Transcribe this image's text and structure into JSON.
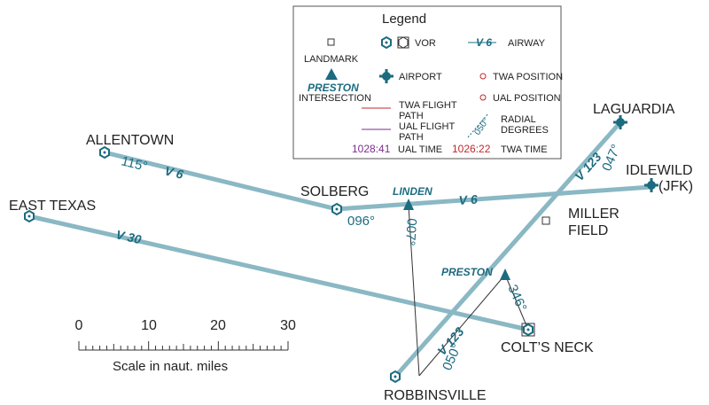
{
  "colors": {
    "airway": "#8ab8c4",
    "teal": "#1c6b80",
    "twa_red": "#c0282c",
    "ual_purple": "#7a2e8c",
    "flight_path_black": "#333333",
    "text": "#222222"
  },
  "places": {
    "allentown": "ALLENTOWN",
    "east_texas": "EAST TEXAS",
    "solberg": "SOLBERG",
    "miller_field_line1": "MILLER",
    "miller_field_line2": "FIELD",
    "laguardia": "LAGUARDIA",
    "idlewild_line1": "IDLEWILD",
    "idlewild_line2": "(JFK)",
    "colts_neck": "COLT’S NECK",
    "robbinsville": "ROBBINSVILLE"
  },
  "intersections": {
    "linden": "LINDEN",
    "preston": "PRESTON"
  },
  "airways": {
    "v6_west": "V 6",
    "v6_east": "V 6",
    "v30": "V 30",
    "v123_north": "V 123",
    "v123_south": "V 123"
  },
  "radials": {
    "allentown": "115°",
    "solberg": "096°",
    "linden": "007°",
    "laguardia": "047°",
    "preston": "346°",
    "robbinsville": "050°"
  },
  "scale": {
    "ticks": [
      "0",
      "10",
      "20",
      "30"
    ],
    "caption": "Scale in naut. miles"
  },
  "legend": {
    "title": "Legend",
    "landmark": "LANDMARK",
    "vor": "VOR",
    "airway_sample": "V 6",
    "airway": "AIRWAY",
    "intersection_sample": "PRESTON",
    "intersection": "INTERSECTION",
    "airport": "AIRPORT",
    "twa_position": "TWA POSITION",
    "ual_position": "UAL POSITION",
    "twa_flight_path_line1": "TWA FLIGHT",
    "twa_flight_path_line2": "PATH",
    "ual_flight_path_line1": "UAL FLIGHT",
    "ual_flight_path_line2": "PATH",
    "radial_sample": "050°",
    "radial_line1": "RADIAL",
    "radial_line2": "DEGREES",
    "ual_time_sample": "1028:41",
    "ual_time": "UAL TIME",
    "twa_time_sample": "1026:22",
    "twa_time": "TWA TIME"
  }
}
